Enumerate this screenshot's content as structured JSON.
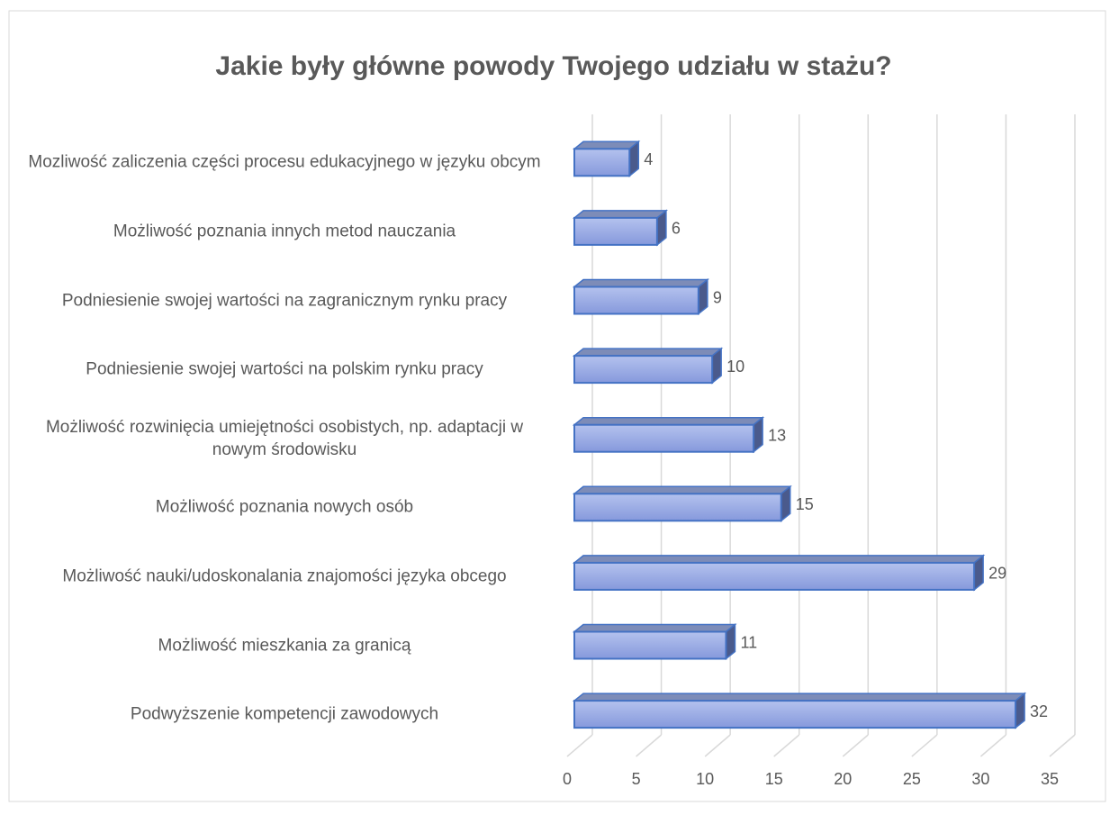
{
  "chart_data": {
    "type": "bar3d",
    "orientation": "horizontal",
    "title": "Jakie były główne powody Twojego udziału w stażu?",
    "categories": [
      "Mozliwość zaliczenia części procesu edukacyjnego w języku obcym",
      "Możliwość poznania innych metod nauczania",
      "Podniesienie swojej wartości na zagranicznym rynku pracy",
      "Podniesienie swojej wartości na polskim rynku pracy",
      "Możliwość rozwinięcia umiejętności osobistych, np. adaptacji w nowym środowisku",
      "Możliwość poznania nowych osób",
      "Możliwość nauki/udoskonalania znajomości języka obcego",
      "Możliwość mieszkania za granicą",
      "Podwyższenie kompetencji zawodowych"
    ],
    "values": [
      4,
      6,
      9,
      10,
      13,
      15,
      29,
      11,
      32
    ],
    "color": "#9aace6",
    "xlim": [
      0,
      35
    ],
    "xticks": [
      0,
      5,
      10,
      15,
      20,
      25,
      30,
      35
    ],
    "grid": true
  }
}
